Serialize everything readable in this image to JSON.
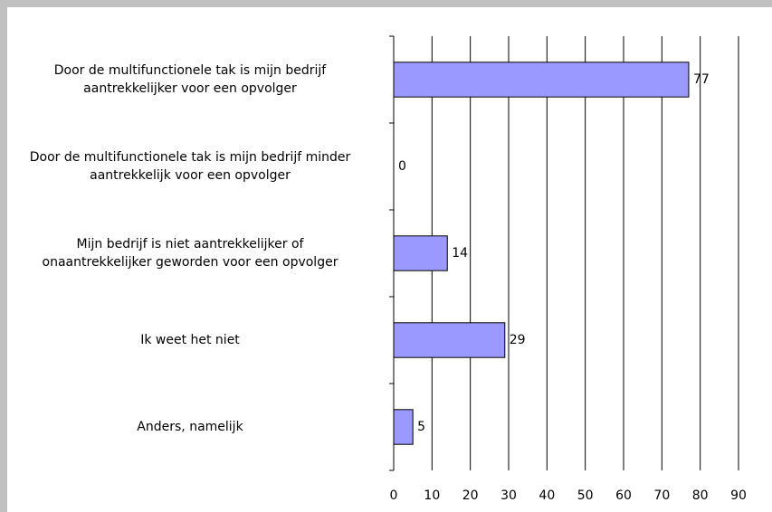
{
  "chart_data": {
    "type": "barh",
    "categories": [
      "Door de multifunctionele tak is mijn bedrijf\naantrekkelijker voor een opvolger",
      "Door de multifunctionele tak is mijn bedrijf minder\naantrekkelijk voor een opvolger",
      "Mijn bedrijf is niet aantrekkelijker of\nonaantrekkelijker geworden voor een opvolger",
      "Ik weet het niet",
      "Anders, namelijk"
    ],
    "values": [
      77,
      0,
      14,
      29,
      5
    ],
    "color": "#9999ff",
    "xlim": [
      0,
      90
    ],
    "xticks": [
      0,
      10,
      20,
      30,
      40,
      50,
      60,
      70,
      80,
      90
    ],
    "grid": true
  }
}
